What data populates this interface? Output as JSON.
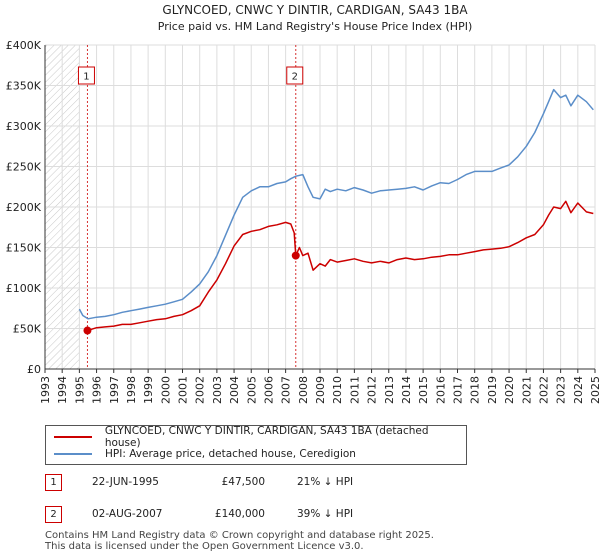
{
  "chart_data": {
    "type": "line",
    "title": "GLYNCOED, CNWC Y DINTIR, CARDIGAN, SA43 1BA",
    "subtitle": "Price paid vs. HM Land Registry's House Price Index (HPI)",
    "xlabel": "",
    "ylabel": "",
    "xlim": [
      1993,
      2025
    ],
    "ylim": [
      0,
      400000
    ],
    "y_ticks": [
      {
        "value": 0,
        "label": "£0"
      },
      {
        "value": 50000,
        "label": "£50K"
      },
      {
        "value": 100000,
        "label": "£100K"
      },
      {
        "value": 150000,
        "label": "£150K"
      },
      {
        "value": 200000,
        "label": "£200K"
      },
      {
        "value": 250000,
        "label": "£250K"
      },
      {
        "value": 300000,
        "label": "£300K"
      },
      {
        "value": 350000,
        "label": "£350K"
      },
      {
        "value": 400000,
        "label": "£400K"
      }
    ],
    "x_ticks": [
      "1993",
      "1994",
      "1995",
      "1996",
      "1997",
      "1998",
      "1999",
      "2000",
      "2001",
      "2002",
      "2003",
      "2004",
      "2005",
      "2006",
      "2007",
      "2008",
      "2009",
      "2010",
      "2011",
      "2012",
      "2013",
      "2014",
      "2015",
      "2016",
      "2017",
      "2018",
      "2019",
      "2020",
      "2021",
      "2022",
      "2023",
      "2024",
      "2025"
    ],
    "grid": true,
    "hatched_before": 1995.0,
    "series": [
      {
        "name": "GLYNCOED, CNWC Y DINTIR, CARDIGAN, SA43 1BA (detached house)",
        "color": "#cc0000",
        "x": [
          1995.47,
          1995.7,
          1996.0,
          1996.5,
          1997.0,
          1997.5,
          1998.0,
          1998.5,
          1999.0,
          1999.5,
          2000.0,
          2000.5,
          2001.0,
          2001.5,
          2002.0,
          2002.5,
          2003.0,
          2003.5,
          2004.0,
          2004.5,
          2005.0,
          2005.5,
          2006.0,
          2006.5,
          2007.0,
          2007.3,
          2007.5,
          2007.59,
          2007.8,
          2008.0,
          2008.3,
          2008.6,
          2009.0,
          2009.3,
          2009.6,
          2010.0,
          2010.5,
          2011.0,
          2011.5,
          2012.0,
          2012.5,
          2013.0,
          2013.5,
          2014.0,
          2014.5,
          2015.0,
          2015.5,
          2016.0,
          2016.5,
          2017.0,
          2017.5,
          2018.0,
          2018.5,
          2019.0,
          2019.5,
          2020.0,
          2020.5,
          2021.0,
          2021.5,
          2022.0,
          2022.3,
          2022.6,
          2023.0,
          2023.3,
          2023.6,
          2024.0,
          2024.5,
          2024.9
        ],
        "values": [
          47500,
          49000,
          51000,
          52000,
          53000,
          55000,
          55000,
          57000,
          59000,
          61000,
          62000,
          65000,
          67000,
          72000,
          78000,
          95000,
          110000,
          130000,
          152000,
          166000,
          170000,
          172000,
          176000,
          178000,
          181000,
          179000,
          168000,
          140000,
          150000,
          140000,
          143000,
          122000,
          130000,
          127000,
          135000,
          132000,
          134000,
          136000,
          133000,
          131000,
          133000,
          131000,
          135000,
          137000,
          135000,
          136000,
          138000,
          139000,
          141000,
          141000,
          143000,
          145000,
          147000,
          148000,
          149000,
          151000,
          156000,
          162000,
          166000,
          178000,
          190000,
          200000,
          198000,
          207000,
          193000,
          205000,
          194000,
          192000
        ]
      },
      {
        "name": "HPI: Average price, detached house, Ceredigion",
        "color": "#5b8ec9",
        "x": [
          1995.0,
          1995.2,
          1995.5,
          1996.0,
          1996.5,
          1997.0,
          1997.5,
          1998.0,
          1998.5,
          1999.0,
          1999.5,
          2000.0,
          2000.5,
          2001.0,
          2001.5,
          2002.0,
          2002.5,
          2003.0,
          2003.5,
          2004.0,
          2004.5,
          2005.0,
          2005.5,
          2006.0,
          2006.5,
          2007.0,
          2007.3,
          2007.6,
          2008.0,
          2008.3,
          2008.6,
          2009.0,
          2009.3,
          2009.6,
          2010.0,
          2010.5,
          2011.0,
          2011.5,
          2012.0,
          2012.5,
          2013.0,
          2013.5,
          2014.0,
          2014.5,
          2015.0,
          2015.5,
          2016.0,
          2016.5,
          2017.0,
          2017.5,
          2018.0,
          2018.5,
          2019.0,
          2019.5,
          2020.0,
          2020.5,
          2021.0,
          2021.5,
          2022.0,
          2022.3,
          2022.6,
          2023.0,
          2023.3,
          2023.6,
          2024.0,
          2024.5,
          2024.9
        ],
        "values": [
          74000,
          66000,
          62000,
          64000,
          65000,
          67000,
          70000,
          72000,
          74000,
          76000,
          78000,
          80000,
          83000,
          86000,
          95000,
          105000,
          120000,
          140000,
          165000,
          190000,
          212000,
          220000,
          225000,
          225000,
          229000,
          231000,
          235000,
          238000,
          240000,
          225000,
          212000,
          210000,
          222000,
          219000,
          222000,
          220000,
          224000,
          221000,
          217000,
          220000,
          221000,
          222000,
          223000,
          225000,
          221000,
          226000,
          230000,
          229000,
          234000,
          240000,
          244000,
          244000,
          244000,
          248000,
          252000,
          262000,
          275000,
          292000,
          315000,
          330000,
          345000,
          335000,
          338000,
          325000,
          338000,
          330000,
          320000
        ]
      }
    ],
    "markers": [
      {
        "id": "1",
        "x": 1995.47,
        "value": 47500
      },
      {
        "id": "2",
        "x": 2007.59,
        "value": 140000
      }
    ]
  },
  "legend": {
    "property": "GLYNCOED, CNWC Y DINTIR, CARDIGAN, SA43 1BA (detached house)",
    "hpi": "HPI: Average price, detached house, Ceredigion"
  },
  "sales": [
    {
      "num": "1",
      "date": "22-JUN-1995",
      "price": "£47,500",
      "hpi": "21% ↓ HPI"
    },
    {
      "num": "2",
      "date": "02-AUG-2007",
      "price": "£140,000",
      "hpi": "39% ↓ HPI"
    }
  ],
  "footer": {
    "line1": "Contains HM Land Registry data © Crown copyright and database right 2025.",
    "line2": "This data is licensed under the Open Government Licence v3.0."
  },
  "colors": {
    "property": "#cc0000",
    "hpi": "#5b8ec9",
    "grid": "#dddddd"
  }
}
